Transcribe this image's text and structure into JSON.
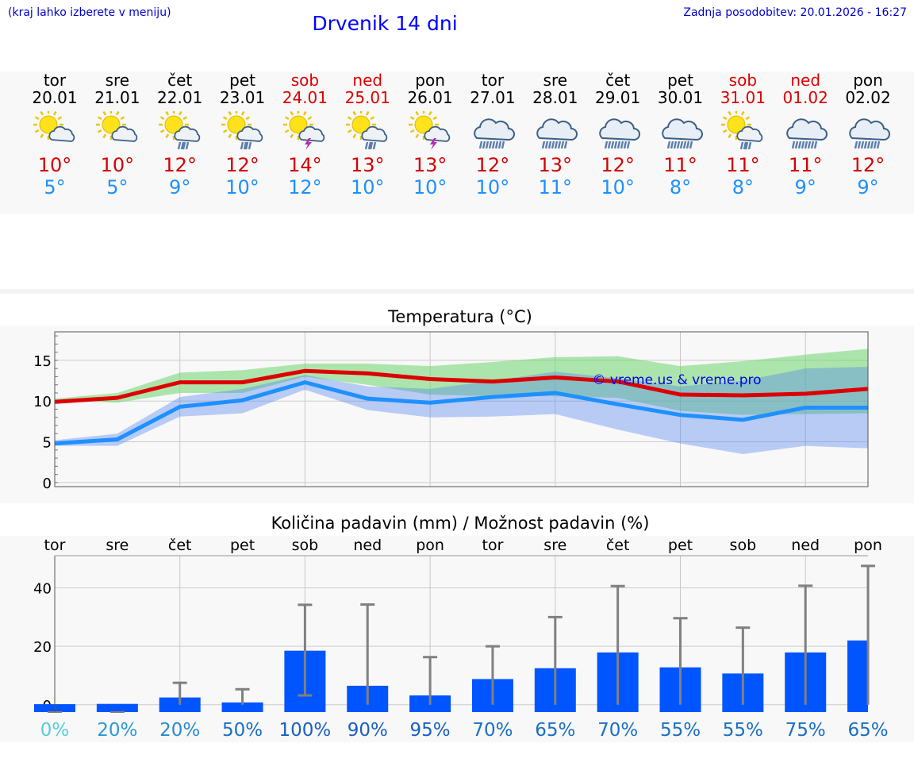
{
  "header": {
    "region_hint": "(kraj lahko izberete v meniju)",
    "title": "Drvenik 14 dni",
    "updated": "Zadnja posodobitev: 20.01.2026 - 16:27"
  },
  "colors": {
    "max_temp": "#dd0000",
    "min_temp": "#1e90ff",
    "bar": "#0055ff",
    "whisker": "#808080"
  },
  "days": [
    {
      "name": "tor",
      "date": "20.01",
      "weekend": false,
      "icon": "sun-cloud-icon",
      "tmax": "10°",
      "tmin": "5°"
    },
    {
      "name": "sre",
      "date": "21.01",
      "weekend": false,
      "icon": "sun-cloud-icon",
      "tmax": "10°",
      "tmin": "5°"
    },
    {
      "name": "čet",
      "date": "22.01",
      "weekend": false,
      "icon": "sun-cloud-rain-icon",
      "tmax": "12°",
      "tmin": "9°"
    },
    {
      "name": "pet",
      "date": "23.01",
      "weekend": false,
      "icon": "sun-cloud-rain-icon",
      "tmax": "12°",
      "tmin": "10°"
    },
    {
      "name": "sob",
      "date": "24.01",
      "weekend": true,
      "icon": "sun-cloud-thunder-icon",
      "tmax": "14°",
      "tmin": "12°"
    },
    {
      "name": "ned",
      "date": "25.01",
      "weekend": true,
      "icon": "sun-cloud-rain-icon",
      "tmax": "13°",
      "tmin": "10°"
    },
    {
      "name": "pon",
      "date": "26.01",
      "weekend": false,
      "icon": "sun-cloud-thunder-icon",
      "tmax": "13°",
      "tmin": "10°"
    },
    {
      "name": "tor",
      "date": "27.01",
      "weekend": false,
      "icon": "cloud-rain-icon",
      "tmax": "12°",
      "tmin": "10°"
    },
    {
      "name": "sre",
      "date": "28.01",
      "weekend": false,
      "icon": "cloud-rain-icon",
      "tmax": "13°",
      "tmin": "11°"
    },
    {
      "name": "čet",
      "date": "29.01",
      "weekend": false,
      "icon": "cloud-rain-icon",
      "tmax": "12°",
      "tmin": "10°"
    },
    {
      "name": "pet",
      "date": "30.01",
      "weekend": false,
      "icon": "cloud-rain-icon",
      "tmax": "11°",
      "tmin": "8°"
    },
    {
      "name": "sob",
      "date": "31.01",
      "weekend": true,
      "icon": "sun-cloud-rain-icon",
      "tmax": "11°",
      "tmin": "8°"
    },
    {
      "name": "ned",
      "date": "01.02",
      "weekend": true,
      "icon": "cloud-rain-icon",
      "tmax": "11°",
      "tmin": "9°"
    },
    {
      "name": "pon",
      "date": "02.02",
      "weekend": false,
      "icon": "cloud-rain-icon",
      "tmax": "12°",
      "tmin": "9°"
    }
  ],
  "chart_data": [
    {
      "type": "line",
      "title": "Temperatura (°C)",
      "watermark": "© vreme.us & vreme.pro",
      "ylim": [
        -0.5,
        18.5
      ],
      "yticks": [
        0,
        5,
        10,
        15
      ],
      "x": [
        0,
        1,
        2,
        3,
        4,
        5,
        6,
        7,
        8,
        9,
        10,
        11,
        12,
        13
      ],
      "series": [
        {
          "name": "max",
          "values": [
            9.9,
            10.4,
            12.3,
            12.3,
            13.7,
            13.4,
            12.7,
            12.4,
            12.9,
            12.4,
            10.8,
            10.7,
            10.9,
            11.5
          ],
          "band_low": [
            10.1,
            9.8,
            11.0,
            11.0,
            13.0,
            12.0,
            10.8,
            10.6,
            10.6,
            10.4,
            8.8,
            8.3,
            8.4,
            8.5
          ],
          "band_high": [
            10.3,
            11.0,
            13.5,
            13.8,
            14.6,
            14.6,
            14.3,
            14.8,
            15.4,
            15.5,
            14.3,
            14.9,
            15.7,
            16.4
          ]
        },
        {
          "name": "min",
          "values": [
            4.8,
            5.3,
            9.3,
            10.1,
            12.3,
            10.3,
            9.8,
            10.5,
            11.0,
            9.6,
            8.3,
            7.7,
            9.2,
            9.2
          ],
          "band_low": [
            4.5,
            4.5,
            8.1,
            8.5,
            11.4,
            8.9,
            8.0,
            8.1,
            8.4,
            6.5,
            4.8,
            3.5,
            4.5,
            4.2
          ],
          "band_high": [
            5.2,
            6.0,
            10.5,
            11.5,
            13.2,
            11.8,
            11.5,
            12.5,
            13.6,
            12.8,
            11.8,
            12.5,
            14.0,
            14.2
          ]
        }
      ]
    },
    {
      "type": "bar",
      "title": "Količina padavin (mm) / Možnost padavin (%)",
      "ylim": [
        -2.5,
        51
      ],
      "yticks": [
        0,
        20,
        40
      ],
      "categories": [
        "tor",
        "sre",
        "čet",
        "pet",
        "sob",
        "ned",
        "pon",
        "tor",
        "sre",
        "čet",
        "pet",
        "sob",
        "ned",
        "pon"
      ],
      "values": [
        0.2,
        0.3,
        2.5,
        0.8,
        18.5,
        6.5,
        3.2,
        8.8,
        12.5,
        17.9,
        12.8,
        10.7,
        17.9,
        22.0
      ],
      "whisker_low": [
        0.2,
        0.3,
        0.0,
        0.0,
        3.2,
        0.0,
        0.0,
        0.0,
        0.0,
        0.0,
        0.0,
        0.0,
        0.0,
        0.0
      ],
      "whisker_high": [
        0.2,
        0.3,
        7.5,
        5.3,
        34.2,
        34.3,
        16.3,
        20.0,
        30.0,
        40.6,
        29.6,
        26.4,
        40.7,
        47.5
      ],
      "chance_labels": [
        "0%",
        "20%",
        "20%",
        "50%",
        "100%",
        "90%",
        "95%",
        "70%",
        "65%",
        "70%",
        "55%",
        "55%",
        "75%",
        "65%"
      ],
      "chance_colors": [
        "#55ccdd",
        "#2a9ad4",
        "#2a8ad0",
        "#1a6fc4",
        "#1a5fbf",
        "#1a5fbf",
        "#1a5fbf",
        "#1a6fc4",
        "#1a6fc4",
        "#1a6fc4",
        "#1a6fc4",
        "#1a6fc4",
        "#1a6fc4",
        "#1a6fc4"
      ]
    }
  ]
}
